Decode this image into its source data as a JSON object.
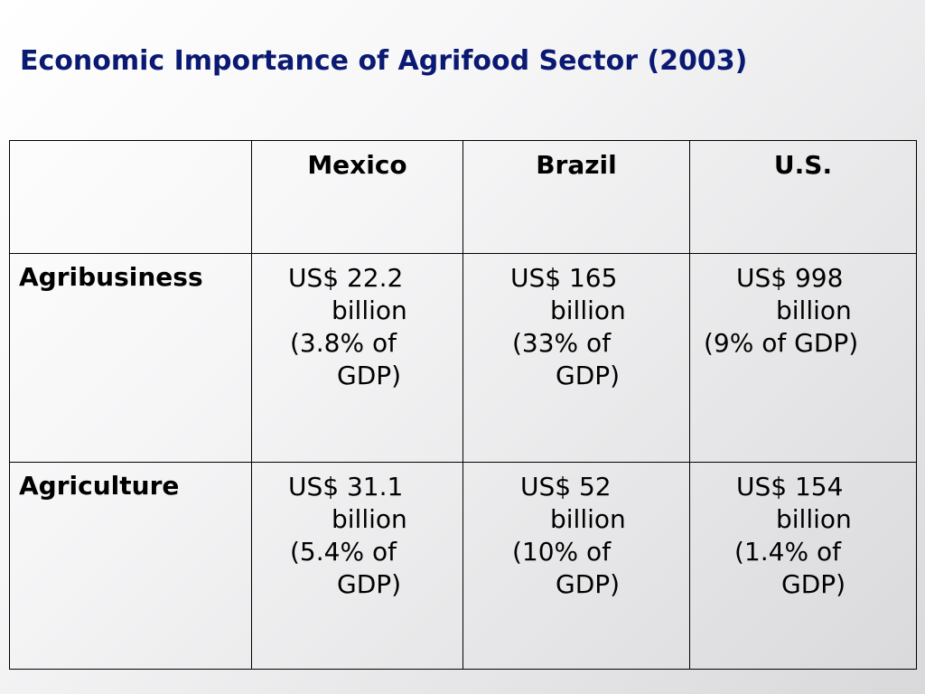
{
  "slide": {
    "title": "Economic Importance of Agrifood Sector (2003)"
  },
  "table": {
    "columns": [
      "",
      "Mexico",
      "Brazil",
      "U.S."
    ],
    "rows": [
      {
        "label": "Agribusiness",
        "cells": [
          [
            "US$ 22.2",
            "billion",
            "(3.8% of",
            "GDP)"
          ],
          [
            "US$ 165",
            "billion",
            "(33% of",
            "GDP)"
          ],
          [
            "US$ 998",
            "billion",
            "(9% of GDP)"
          ]
        ]
      },
      {
        "label": "Agriculture",
        "cells": [
          [
            "US$ 31.1",
            "billion",
            "(5.4% of",
            "GDP)"
          ],
          [
            "US$ 52",
            "billion",
            "(10% of",
            "GDP)"
          ],
          [
            "US$ 154",
            "billion",
            "(1.4% of",
            "GDP)"
          ]
        ]
      }
    ]
  }
}
